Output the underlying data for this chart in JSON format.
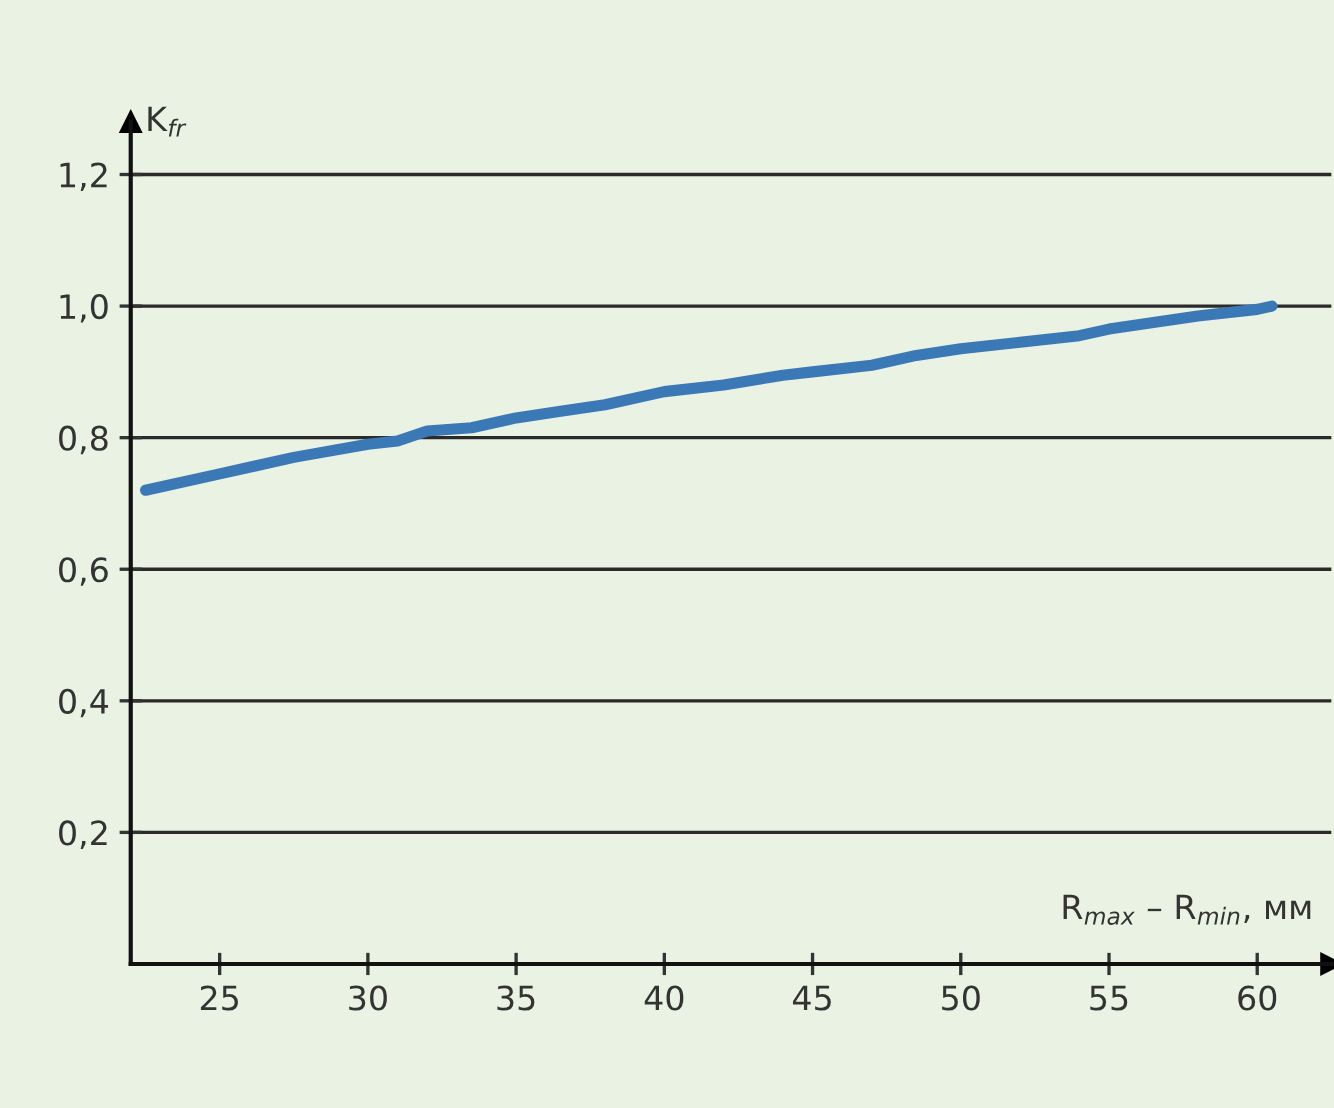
{
  "chart_data": {
    "type": "line",
    "ylabel": "K$_{fr}$",
    "xlabel": "R$_{max}$ – R$_{min}$, мм",
    "x": [
      22.5,
      25,
      27.5,
      30,
      31,
      32,
      33.5,
      35,
      36.5,
      38,
      40,
      42,
      44,
      45,
      47,
      48.5,
      50,
      52,
      54,
      55,
      56.5,
      58,
      60,
      60.5
    ],
    "series": [
      {
        "color": "#3b79b6",
        "values": [
          0.72,
          0.745,
          0.77,
          0.79,
          0.795,
          0.81,
          0.815,
          0.83,
          0.84,
          0.85,
          0.87,
          0.88,
          0.895,
          0.9,
          0.91,
          0.925,
          0.935,
          0.945,
          0.955,
          0.965,
          0.975,
          0.985,
          0.995,
          1.0
        ]
      }
    ],
    "xlim": [
      22,
      62.5
    ],
    "ylim": [
      0,
      1.28
    ],
    "xticks": [
      25,
      30,
      35,
      40,
      45,
      50,
      55,
      60
    ],
    "yticks": [
      {
        "value": 0.2,
        "label": "0,2"
      },
      {
        "value": 0.4,
        "label": "0,4"
      },
      {
        "value": 0.6,
        "label": "0,6"
      },
      {
        "value": 0.8,
        "label": "0,8"
      },
      {
        "value": 1.0,
        "label": "1,0"
      },
      {
        "value": 1.2,
        "label": "1,2"
      }
    ],
    "grid": "y",
    "legend": false,
    "marker": "none",
    "line_style": "solid"
  }
}
